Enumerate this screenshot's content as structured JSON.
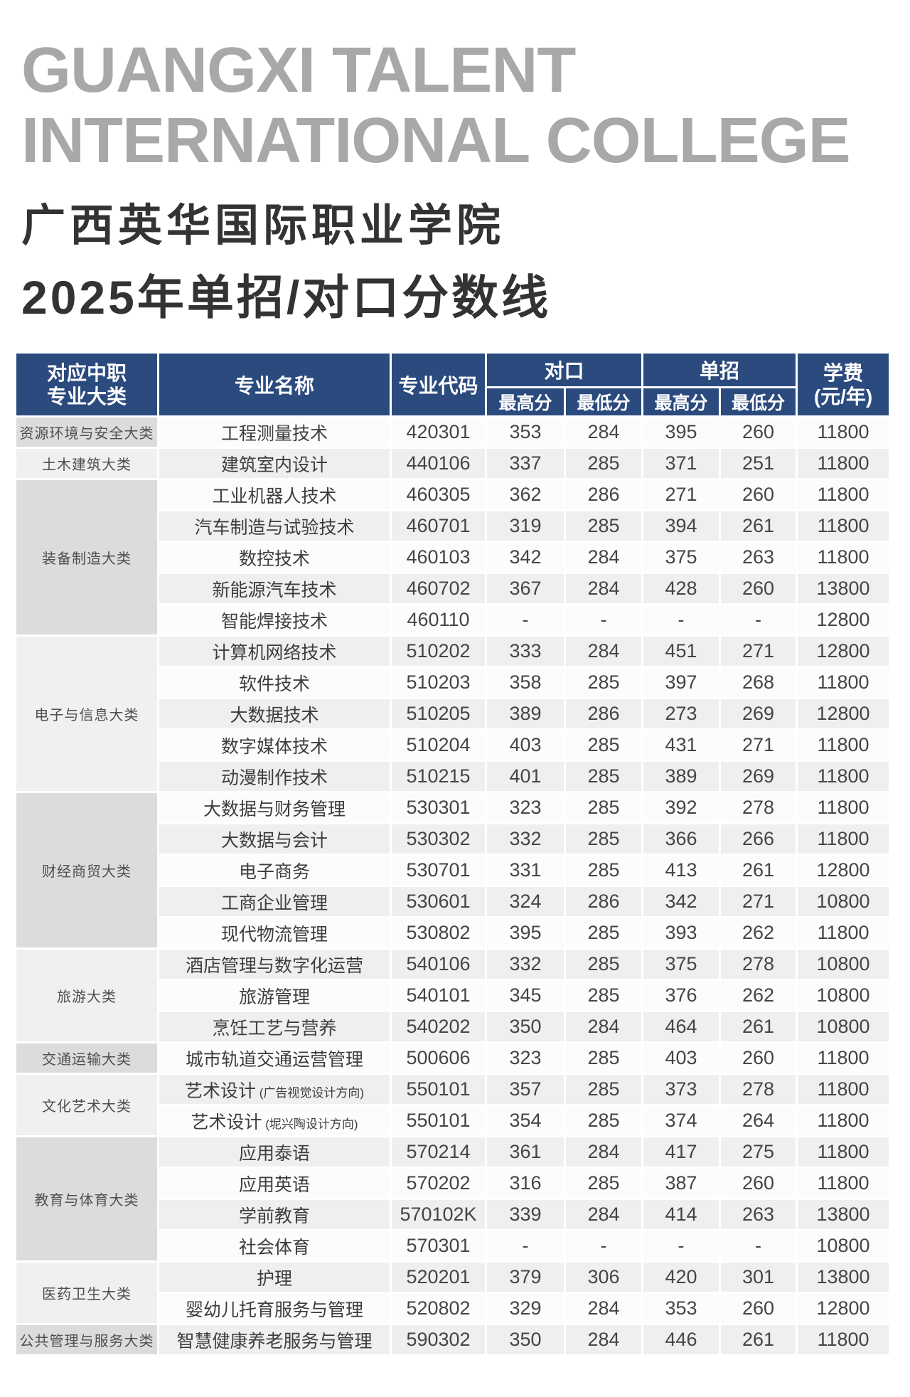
{
  "header": {
    "title_en_line1": "GUANGXI TALENT",
    "title_en_line2": "INTERNATIONAL COLLEGE",
    "title_zh": "广西英华国际职业学院",
    "subtitle_zh": "2025年单招/对口分数线"
  },
  "colors": {
    "table_header_bg": "#2b4a7e",
    "table_header_text": "#ffffff",
    "title_en": "#a8a8a8",
    "title_zh": "#333333",
    "row_light": "#fcfcfc",
    "row_alt": "#efefef",
    "category_dark": "#dcdcdc",
    "category_light": "#f0f0f0",
    "body_text": "#454545"
  },
  "table": {
    "headers": {
      "category_line1": "对应中职",
      "category_line2": "专业大类",
      "major": "专业名称",
      "code": "专业代码",
      "duikou": "对口",
      "danzhao": "单招",
      "max_score": "最高分",
      "min_score": "最低分",
      "fee_line1": "学费",
      "fee_line2": "(元/年)"
    },
    "groups": [
      {
        "category": "资源环境与安全大类",
        "shade": "dark",
        "rows": [
          {
            "major": "工程测量技术",
            "note": "",
            "code": "420301",
            "dk_max": "353",
            "dk_min": "284",
            "dz_max": "395",
            "dz_min": "260",
            "fee": "11800"
          }
        ]
      },
      {
        "category": "土木建筑大类",
        "shade": "light",
        "rows": [
          {
            "major": "建筑室内设计",
            "note": "",
            "code": "440106",
            "dk_max": "337",
            "dk_min": "285",
            "dz_max": "371",
            "dz_min": "251",
            "fee": "11800"
          }
        ]
      },
      {
        "category": "装备制造大类",
        "shade": "dark",
        "rows": [
          {
            "major": "工业机器人技术",
            "note": "",
            "code": "460305",
            "dk_max": "362",
            "dk_min": "286",
            "dz_max": "271",
            "dz_min": "260",
            "fee": "11800"
          },
          {
            "major": "汽车制造与试验技术",
            "note": "",
            "code": "460701",
            "dk_max": "319",
            "dk_min": "285",
            "dz_max": "394",
            "dz_min": "261",
            "fee": "11800"
          },
          {
            "major": "数控技术",
            "note": "",
            "code": "460103",
            "dk_max": "342",
            "dk_min": "284",
            "dz_max": "375",
            "dz_min": "263",
            "fee": "11800"
          },
          {
            "major": "新能源汽车技术",
            "note": "",
            "code": "460702",
            "dk_max": "367",
            "dk_min": "284",
            "dz_max": "428",
            "dz_min": "260",
            "fee": "13800"
          },
          {
            "major": "智能焊接技术",
            "note": "",
            "code": "460110",
            "dk_max": "-",
            "dk_min": "-",
            "dz_max": "-",
            "dz_min": "-",
            "fee": "12800"
          }
        ]
      },
      {
        "category": "电子与信息大类",
        "shade": "light",
        "rows": [
          {
            "major": "计算机网络技术",
            "note": "",
            "code": "510202",
            "dk_max": "333",
            "dk_min": "284",
            "dz_max": "451",
            "dz_min": "271",
            "fee": "12800"
          },
          {
            "major": "软件技术",
            "note": "",
            "code": "510203",
            "dk_max": "358",
            "dk_min": "285",
            "dz_max": "397",
            "dz_min": "268",
            "fee": "11800"
          },
          {
            "major": "大数据技术",
            "note": "",
            "code": "510205",
            "dk_max": "389",
            "dk_min": "286",
            "dz_max": "273",
            "dz_min": "269",
            "fee": "12800"
          },
          {
            "major": "数字媒体技术",
            "note": "",
            "code": "510204",
            "dk_max": "403",
            "dk_min": "285",
            "dz_max": "431",
            "dz_min": "271",
            "fee": "11800"
          },
          {
            "major": "动漫制作技术",
            "note": "",
            "code": "510215",
            "dk_max": "401",
            "dk_min": "285",
            "dz_max": "389",
            "dz_min": "269",
            "fee": "11800"
          }
        ]
      },
      {
        "category": "财经商贸大类",
        "shade": "dark",
        "rows": [
          {
            "major": "大数据与财务管理",
            "note": "",
            "code": "530301",
            "dk_max": "323",
            "dk_min": "285",
            "dz_max": "392",
            "dz_min": "278",
            "fee": "11800"
          },
          {
            "major": "大数据与会计",
            "note": "",
            "code": "530302",
            "dk_max": "332",
            "dk_min": "285",
            "dz_max": "366",
            "dz_min": "266",
            "fee": "11800"
          },
          {
            "major": "电子商务",
            "note": "",
            "code": "530701",
            "dk_max": "331",
            "dk_min": "285",
            "dz_max": "413",
            "dz_min": "261",
            "fee": "12800"
          },
          {
            "major": "工商企业管理",
            "note": "",
            "code": "530601",
            "dk_max": "324",
            "dk_min": "286",
            "dz_max": "342",
            "dz_min": "271",
            "fee": "10800"
          },
          {
            "major": "现代物流管理",
            "note": "",
            "code": "530802",
            "dk_max": "395",
            "dk_min": "285",
            "dz_max": "393",
            "dz_min": "262",
            "fee": "11800"
          }
        ]
      },
      {
        "category": "旅游大类",
        "shade": "light",
        "rows": [
          {
            "major": "酒店管理与数字化运营",
            "note": "",
            "code": "540106",
            "dk_max": "332",
            "dk_min": "285",
            "dz_max": "375",
            "dz_min": "278",
            "fee": "10800"
          },
          {
            "major": "旅游管理",
            "note": "",
            "code": "540101",
            "dk_max": "345",
            "dk_min": "285",
            "dz_max": "376",
            "dz_min": "262",
            "fee": "10800"
          },
          {
            "major": "烹饪工艺与营养",
            "note": "",
            "code": "540202",
            "dk_max": "350",
            "dk_min": "284",
            "dz_max": "464",
            "dz_min": "261",
            "fee": "10800"
          }
        ]
      },
      {
        "category": "交通运输大类",
        "shade": "dark",
        "rows": [
          {
            "major": "城市轨道交通运营管理",
            "note": "",
            "code": "500606",
            "dk_max": "323",
            "dk_min": "285",
            "dz_max": "403",
            "dz_min": "260",
            "fee": "11800"
          }
        ]
      },
      {
        "category": "文化艺术大类",
        "shade": "light",
        "rows": [
          {
            "major": "艺术设计",
            "note": "(广告视觉设计方向)",
            "code": "550101",
            "dk_max": "357",
            "dk_min": "285",
            "dz_max": "373",
            "dz_min": "278",
            "fee": "11800"
          },
          {
            "major": "艺术设计",
            "note": "(坭兴陶设计方向)",
            "code": "550101",
            "dk_max": "354",
            "dk_min": "285",
            "dz_max": "374",
            "dz_min": "264",
            "fee": "11800"
          }
        ]
      },
      {
        "category": "教育与体育大类",
        "shade": "dark",
        "rows": [
          {
            "major": "应用泰语",
            "note": "",
            "code": "570214",
            "dk_max": "361",
            "dk_min": "284",
            "dz_max": "417",
            "dz_min": "275",
            "fee": "11800"
          },
          {
            "major": "应用英语",
            "note": "",
            "code": "570202",
            "dk_max": "316",
            "dk_min": "285",
            "dz_max": "387",
            "dz_min": "260",
            "fee": "11800"
          },
          {
            "major": "学前教育",
            "note": "",
            "code": "570102K",
            "dk_max": "339",
            "dk_min": "284",
            "dz_max": "414",
            "dz_min": "263",
            "fee": "13800"
          },
          {
            "major": "社会体育",
            "note": "",
            "code": "570301",
            "dk_max": "-",
            "dk_min": "-",
            "dz_max": "-",
            "dz_min": "-",
            "fee": "10800"
          }
        ]
      },
      {
        "category": "医药卫生大类",
        "shade": "light",
        "rows": [
          {
            "major": "护理",
            "note": "",
            "code": "520201",
            "dk_max": "379",
            "dk_min": "306",
            "dz_max": "420",
            "dz_min": "301",
            "fee": "13800"
          },
          {
            "major": "婴幼儿托育服务与管理",
            "note": "",
            "code": "520802",
            "dk_max": "329",
            "dk_min": "284",
            "dz_max": "353",
            "dz_min": "260",
            "fee": "12800"
          }
        ]
      },
      {
        "category": "公共管理与服务大类",
        "shade": "dark",
        "rows": [
          {
            "major": "智慧健康养老服务与管理",
            "note": "",
            "code": "590302",
            "dk_max": "350",
            "dk_min": "284",
            "dz_max": "446",
            "dz_min": "261",
            "fee": "11800"
          }
        ]
      }
    ]
  }
}
